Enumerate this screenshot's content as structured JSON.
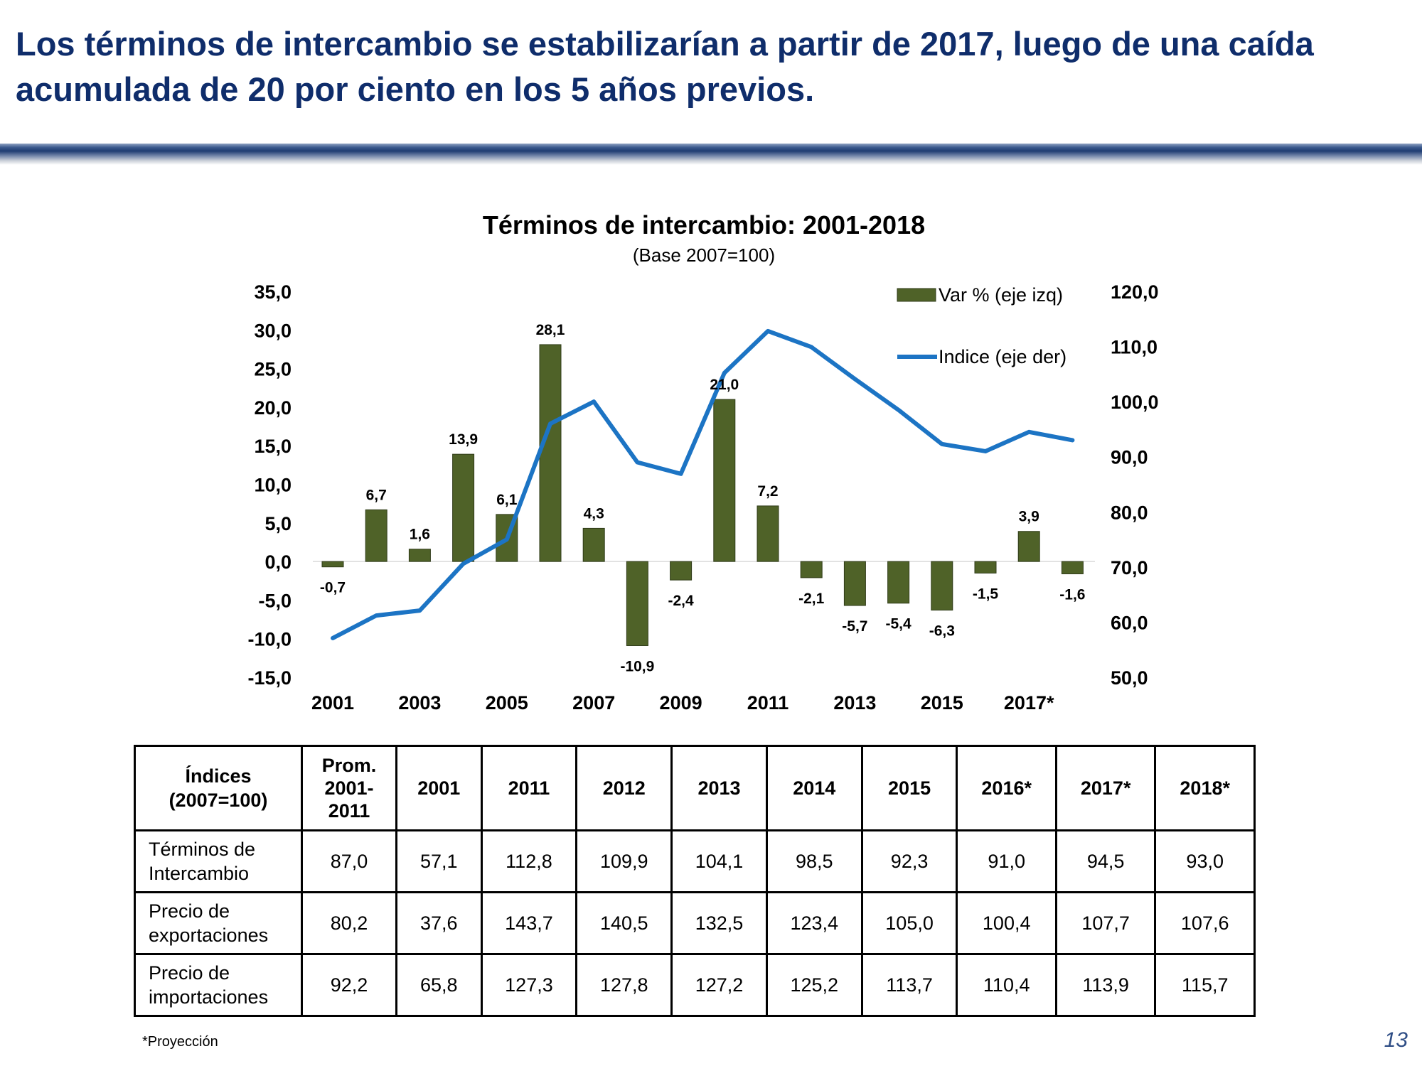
{
  "slide": {
    "headline_line1": "Los términos de intercambio se estabilizarían a partir de 2017, luego de una caída",
    "headline_line2": "acumulada de 20 por ciento en los 5 años previos.",
    "footnote": "*Proyección",
    "page_number": "13"
  },
  "colors": {
    "bar": "#4f6228",
    "line": "#1c74c4",
    "headline": "#0f2d6b"
  },
  "chart_data": {
    "type": "bar+line",
    "title": "Términos de intercambio: 2001-2018",
    "subtitle": "(Base 2007=100)",
    "categories": [
      "2001",
      "2002",
      "2003",
      "2004",
      "2005",
      "2006",
      "2007",
      "2008",
      "2009",
      "2010",
      "2011",
      "2012",
      "2013",
      "2014",
      "2015",
      "2016",
      "2017",
      "2018"
    ],
    "x_tick_labels": [
      {
        "index": 0,
        "label": "2001"
      },
      {
        "index": 2,
        "label": "2003"
      },
      {
        "index": 4,
        "label": "2005"
      },
      {
        "index": 6,
        "label": "2007"
      },
      {
        "index": 8,
        "label": "2009"
      },
      {
        "index": 10,
        "label": "2011"
      },
      {
        "index": 12,
        "label": "2013"
      },
      {
        "index": 14,
        "label": "2015"
      },
      {
        "index": 16,
        "label": "2017*"
      }
    ],
    "series": [
      {
        "name": "Var % (eje izq)",
        "kind": "bar",
        "axis": "left",
        "values": [
          -0.7,
          6.7,
          1.6,
          13.9,
          6.1,
          28.1,
          4.3,
          -10.9,
          -2.4,
          21.0,
          7.2,
          -2.1,
          -5.7,
          -5.4,
          -6.3,
          -1.5,
          3.9,
          -1.6
        ],
        "labels": [
          "-0,7",
          "6,7",
          "1,6",
          "13,9",
          "6,1",
          "28,1",
          "4,3",
          "-10,9",
          "-2,4",
          "21,0",
          "7,2",
          "-2,1",
          "-5,7",
          "-5,4",
          "-6,3",
          "-1,5",
          "3,9",
          "-1,6"
        ]
      },
      {
        "name": "Indice (eje der)",
        "kind": "line",
        "axis": "right",
        "values": [
          57.1,
          61.2,
          62.1,
          70.6,
          75.0,
          96.0,
          100.0,
          89.0,
          86.9,
          105.2,
          112.8,
          109.9,
          104.1,
          98.5,
          92.3,
          91.0,
          94.5,
          93.0
        ]
      }
    ],
    "y_left": {
      "min": -15,
      "max": 35,
      "step": 5,
      "tick_labels": [
        "-15,0",
        "-10,0",
        "-5,0",
        "0,0",
        "5,0",
        "10,0",
        "15,0",
        "20,0",
        "25,0",
        "30,0",
        "35,0"
      ]
    },
    "y_right": {
      "min": 50,
      "max": 120,
      "step": 10,
      "tick_labels": [
        "50,0",
        "60,0",
        "70,0",
        "80,0",
        "90,0",
        "100,0",
        "110,0",
        "120,0"
      ]
    },
    "legend_position": "top-right",
    "grid": false
  },
  "table": {
    "header_label": [
      "Índices",
      "(2007=100)"
    ],
    "prom_label": [
      "Prom.",
      "2001-",
      "2011"
    ],
    "year_headers": [
      "2001",
      "2011",
      "2012",
      "2013",
      "2014",
      "2015",
      "2016*",
      "2017*",
      "2018*"
    ],
    "rows": [
      {
        "label": [
          "Términos de",
          "Intercambio"
        ],
        "values": [
          "87,0",
          "57,1",
          "112,8",
          "109,9",
          "104,1",
          "98,5",
          "92,3",
          "91,0",
          "94,5",
          "93,0"
        ]
      },
      {
        "label": [
          "Precio de",
          "exportaciones"
        ],
        "values": [
          "80,2",
          "37,6",
          "143,7",
          "140,5",
          "132,5",
          "123,4",
          "105,0",
          "100,4",
          "107,7",
          "107,6"
        ]
      },
      {
        "label": [
          "Precio de",
          "importaciones"
        ],
        "values": [
          "92,2",
          "65,8",
          "127,3",
          "127,8",
          "127,2",
          "125,2",
          "113,7",
          "110,4",
          "113,9",
          "115,7"
        ]
      }
    ]
  }
}
